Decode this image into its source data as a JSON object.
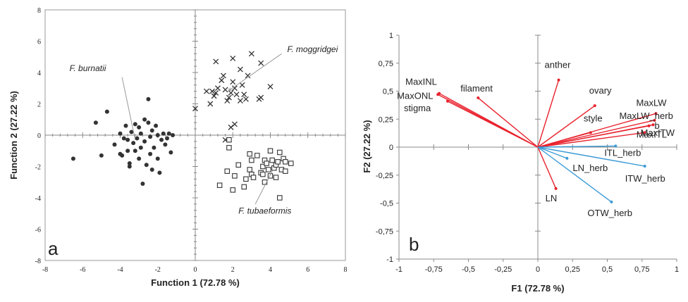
{
  "chart_data": [
    {
      "type": "scatter",
      "panel_label": "a",
      "xlabel": "Function 1 (72.78 %)",
      "ylabel": "Function 2 (27.22 %)",
      "xlim": [
        -8,
        8
      ],
      "ylim": [
        -8,
        8
      ],
      "xticks": [
        -8,
        -6,
        -4,
        -2,
        0,
        2,
        4,
        6,
        8
      ],
      "yticks": [
        -8,
        -6,
        -4,
        -2,
        0,
        2,
        4,
        6,
        8
      ],
      "xtick_labels": [
        "-8",
        "-6",
        "-4",
        "-2",
        "0",
        "2",
        "4",
        "6",
        "8"
      ],
      "ytick_labels": [
        "-8",
        "-6",
        "-4",
        "-2",
        "0",
        "2",
        "4",
        "6",
        "8"
      ],
      "series": [
        {
          "name": "F. burnatii",
          "marker": "filled-circle",
          "color": "#333333",
          "points": [
            [
              -6.5,
              -1.5
            ],
            [
              -5.3,
              0.8
            ],
            [
              -5.0,
              -1.3
            ],
            [
              -4.7,
              1.5
            ],
            [
              -4.3,
              -0.6
            ],
            [
              -4.0,
              0.1
            ],
            [
              -4.0,
              -1.2
            ],
            [
              -3.9,
              -1.3
            ],
            [
              -3.8,
              -0.2
            ],
            [
              -3.7,
              0.6
            ],
            [
              -3.6,
              -0.3
            ],
            [
              -3.5,
              -1.8
            ],
            [
              -3.5,
              -2.0
            ],
            [
              -3.4,
              0.2
            ],
            [
              -3.3,
              -0.5
            ],
            [
              -3.2,
              0.7
            ],
            [
              -3.2,
              -1.0
            ],
            [
              -3.1,
              -0.2
            ],
            [
              -3.0,
              0.5
            ],
            [
              -3.0,
              -1.5
            ],
            [
              -2.9,
              0.1
            ],
            [
              -2.9,
              -0.8
            ],
            [
              -2.8,
              -3.1
            ],
            [
              -2.7,
              -0.4
            ],
            [
              -2.6,
              -1.9
            ],
            [
              -2.5,
              2.3
            ],
            [
              -2.5,
              0.8
            ],
            [
              -2.4,
              -0.1
            ],
            [
              -2.4,
              -1.2
            ],
            [
              -2.3,
              0.3
            ],
            [
              -2.3,
              -2.2
            ],
            [
              -2.2,
              -0.8
            ],
            [
              -2.1,
              0.6
            ],
            [
              -2.0,
              -1.5
            ],
            [
              -2.0,
              0.0
            ],
            [
              -1.9,
              -2.4
            ],
            [
              -1.8,
              -0.3
            ],
            [
              -1.7,
              0.1
            ],
            [
              -1.6,
              -0.6
            ],
            [
              -1.5,
              -0.2
            ],
            [
              -1.4,
              0.1
            ],
            [
              -1.3,
              -1.1
            ],
            [
              -1.2,
              0.0
            ],
            [
              -2.7,
              1.0
            ],
            [
              -3.6,
              -1.0
            ]
          ]
        },
        {
          "name": "F. moggridgei",
          "marker": "cross",
          "color": "#333333",
          "points": [
            [
              0.0,
              1.7
            ],
            [
              0.6,
              2.8
            ],
            [
              0.8,
              2.0
            ],
            [
              0.9,
              2.8
            ],
            [
              1.0,
              2.5
            ],
            [
              1.1,
              2.7
            ],
            [
              1.1,
              4.7
            ],
            [
              1.2,
              3.0
            ],
            [
              1.4,
              3.5
            ],
            [
              1.5,
              3.8
            ],
            [
              1.6,
              2.9
            ],
            [
              1.7,
              2.2
            ],
            [
              1.8,
              2.4
            ],
            [
              1.9,
              2.7
            ],
            [
              2.0,
              4.9
            ],
            [
              2.0,
              3.4
            ],
            [
              2.1,
              3.0
            ],
            [
              2.2,
              2.6
            ],
            [
              2.4,
              4.2
            ],
            [
              2.4,
              2.2
            ],
            [
              2.5,
              3.2
            ],
            [
              2.6,
              2.6
            ],
            [
              2.7,
              2.3
            ],
            [
              2.8,
              3.8
            ],
            [
              3.0,
              5.2
            ],
            [
              3.4,
              2.3
            ],
            [
              3.5,
              2.4
            ],
            [
              3.5,
              4.6
            ],
            [
              4.0,
              3.1
            ],
            [
              1.6,
              -0.3
            ],
            [
              1.9,
              0.5
            ],
            [
              2.1,
              0.7
            ]
          ]
        },
        {
          "name": "F. tubaeformis",
          "marker": "open-square",
          "color": "#333333",
          "points": [
            [
              1.3,
              -3.2
            ],
            [
              1.7,
              -2.3
            ],
            [
              1.8,
              -0.3
            ],
            [
              1.8,
              -0.8
            ],
            [
              2.0,
              -3.5
            ],
            [
              2.1,
              -2.6
            ],
            [
              2.3,
              -1.9
            ],
            [
              2.6,
              -3.3
            ],
            [
              2.7,
              -2.8
            ],
            [
              2.9,
              -1.2
            ],
            [
              2.9,
              -2.2
            ],
            [
              3.0,
              -2.5
            ],
            [
              3.0,
              -1.6
            ],
            [
              3.1,
              -2.7
            ],
            [
              3.3,
              -1.3
            ],
            [
              3.5,
              -2.4
            ],
            [
              3.6,
              -2.0
            ],
            [
              3.7,
              -1.6
            ],
            [
              3.7,
              -3.0
            ],
            [
              3.8,
              -1.8
            ],
            [
              3.9,
              -2.2
            ],
            [
              4.0,
              -1.0
            ],
            [
              4.0,
              -2.6
            ],
            [
              4.1,
              -1.6
            ],
            [
              4.2,
              -2.1
            ],
            [
              4.3,
              -1.9
            ],
            [
              4.4,
              -1.7
            ],
            [
              4.5,
              -1.1
            ],
            [
              4.6,
              -2.2
            ],
            [
              4.7,
              -1.5
            ],
            [
              4.8,
              -1.7
            ],
            [
              4.8,
              -2.3
            ],
            [
              5.1,
              -1.8
            ],
            [
              4.5,
              -4.0
            ],
            [
              3.6,
              -2.5
            ],
            [
              4.3,
              -2.7
            ]
          ]
        }
      ],
      "annotations": [
        "F. burnatii",
        "F. moggridgei",
        "F. tubaeformis"
      ]
    },
    {
      "type": "biplot",
      "panel_label": "b",
      "xlabel": "F1 (72.78 %)",
      "ylabel": "F2 (27.22 %)",
      "xlim": [
        -1,
        1
      ],
      "ylim": [
        -1,
        1
      ],
      "xticks": [
        -1,
        -0.75,
        -0.5,
        -0.25,
        0,
        0.25,
        0.5,
        0.75,
        1
      ],
      "yticks": [
        -1,
        -0.75,
        -0.5,
        -0.25,
        0,
        0.25,
        0.5,
        0.75,
        1
      ],
      "xtick_labels": [
        "-1",
        "-0,75",
        "-0,5",
        "-0,25",
        "0",
        "0,25",
        "0,5",
        "0,75",
        "1"
      ],
      "ytick_labels": [
        "-1",
        "-0,75",
        "-0,5",
        "-0,25",
        "0",
        "0,25",
        "0,5",
        "0,75",
        "1"
      ],
      "colors": {
        "red": "#e8222d",
        "blue": "#3b9bd6"
      },
      "vectors": [
        {
          "label": "MaxINL",
          "x": -0.71,
          "y": 0.48,
          "color": "red"
        },
        {
          "label": "MaxONL",
          "x": -0.72,
          "y": 0.47,
          "color": "red"
        },
        {
          "label": "stigma",
          "x": -0.65,
          "y": 0.41,
          "color": "red"
        },
        {
          "label": "filament",
          "x": -0.43,
          "y": 0.44,
          "color": "red"
        },
        {
          "label": "anther",
          "x": 0.15,
          "y": 0.6,
          "color": "red"
        },
        {
          "label": "ovary",
          "x": 0.41,
          "y": 0.37,
          "color": "red"
        },
        {
          "label": "style",
          "x": 0.38,
          "y": 0.13,
          "color": "red"
        },
        {
          "label": "MaxLW",
          "x": 0.85,
          "y": 0.3,
          "color": "red"
        },
        {
          "label": "MaxLW_herb",
          "x": 0.84,
          "y": 0.24,
          "color": "red"
        },
        {
          "label": "b",
          "x": 0.83,
          "y": 0.2,
          "color": "red"
        },
        {
          "label": "MaxITW",
          "x": 0.8,
          "y": 0.19,
          "color": "red"
        },
        {
          "label": "MaxITL",
          "x": 0.77,
          "y": 0.13,
          "color": "red"
        },
        {
          "label": "ITL_herb",
          "x": 0.56,
          "y": 0.01,
          "color": "blue"
        },
        {
          "label": "LN_herb",
          "x": 0.21,
          "y": -0.1,
          "color": "blue"
        },
        {
          "label": "ITW_herb",
          "x": 0.77,
          "y": -0.17,
          "color": "blue"
        },
        {
          "label": "LN",
          "x": 0.13,
          "y": -0.37,
          "color": "red"
        },
        {
          "label": "OTW_herb",
          "x": 0.53,
          "y": -0.49,
          "color": "blue"
        }
      ]
    }
  ]
}
